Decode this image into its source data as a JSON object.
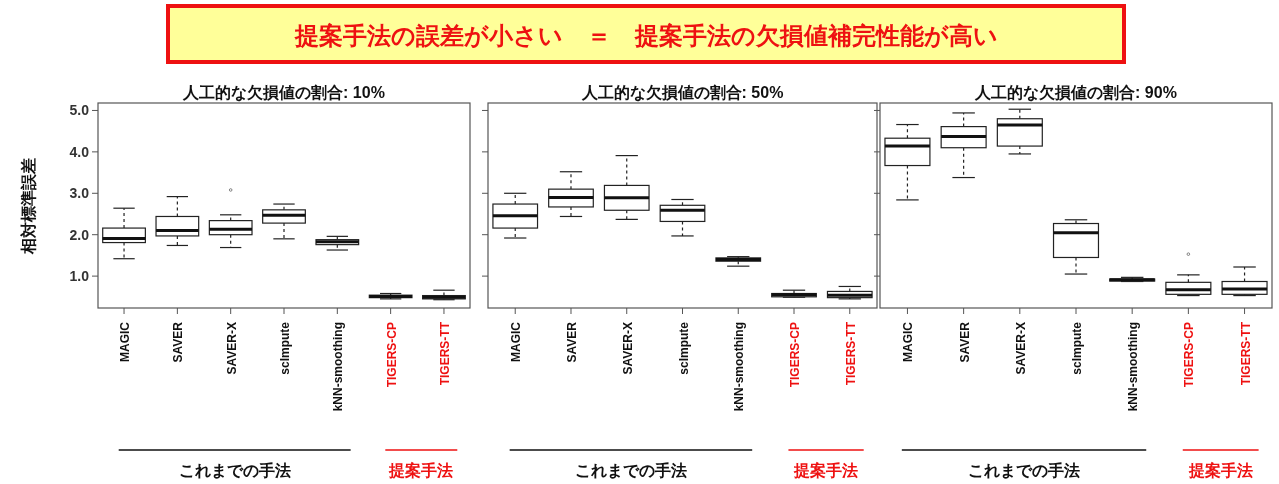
{
  "chart_data": [
    {
      "type": "box",
      "title": "人工的な欠損値の割合: 10%",
      "ylabel": "相対標準誤差",
      "categories": [
        "MAGIC",
        "SAVER",
        "SAVER-X",
        "scImpute",
        "kNN-smoothing",
        "TIGERS-CP",
        "TIGERS-TT"
      ],
      "ylim": [
        0.23,
        5.18
      ],
      "yticks": [
        {
          "value": 1,
          "label": "1.0"
        },
        {
          "value": 2,
          "label": "2.0"
        },
        {
          "value": 3,
          "label": "3.0"
        },
        {
          "value": 4,
          "label": "4.0"
        },
        {
          "value": 5,
          "label": "5.0"
        }
      ],
      "boxes": [
        {
          "low": 1.42,
          "q1": 1.81,
          "median": 1.91,
          "q3": 2.16,
          "high": 2.64
        },
        {
          "low": 1.74,
          "q1": 1.97,
          "median": 2.1,
          "q3": 2.44,
          "high": 2.92
        },
        {
          "low": 1.69,
          "q1": 2.0,
          "median": 2.13,
          "q3": 2.34,
          "high": 2.48,
          "outliers": [
            3.08
          ]
        },
        {
          "low": 1.9,
          "q1": 2.28,
          "median": 2.47,
          "q3": 2.6,
          "high": 2.74
        },
        {
          "low": 1.63,
          "q1": 1.76,
          "median": 1.83,
          "q3": 1.88,
          "high": 1.96
        },
        {
          "low": 0.45,
          "q1": 0.48,
          "median": 0.51,
          "q3": 0.54,
          "high": 0.58
        },
        {
          "low": 0.43,
          "q1": 0.45,
          "median": 0.49,
          "q3": 0.53,
          "high": 0.66
        }
      ],
      "annotations": [
        "提案手法の誤差が小さい　＝　提案手法の欠損値補完性能が高い",
        "これまでの手法",
        "提案手法"
      ]
    },
    {
      "type": "box",
      "title": "人工的な欠損値の割合: 50%",
      "tick_labels": "x",
      "categories": [
        "MAGIC",
        "SAVER",
        "SAVER-X",
        "scImpute",
        "kNN-smoothing",
        "TIGERS-CP",
        "TIGERS-TT"
      ],
      "ylim": [
        0.23,
        5.18
      ],
      "yticks": [
        1,
        2,
        3,
        4,
        5
      ],
      "boxes": [
        {
          "low": 1.92,
          "q1": 2.16,
          "median": 2.46,
          "q3": 2.74,
          "high": 3.0
        },
        {
          "low": 2.44,
          "q1": 2.67,
          "median": 2.9,
          "q3": 3.1,
          "high": 3.52
        },
        {
          "low": 2.37,
          "q1": 2.59,
          "median": 2.89,
          "q3": 3.19,
          "high": 3.91
        },
        {
          "low": 1.97,
          "q1": 2.32,
          "median": 2.59,
          "q3": 2.71,
          "high": 2.85
        },
        {
          "low": 1.24,
          "q1": 1.36,
          "median": 1.4,
          "q3": 1.44,
          "high": 1.47
        },
        {
          "low": 0.49,
          "q1": 0.5,
          "median": 0.55,
          "q3": 0.58,
          "high": 0.66
        },
        {
          "low": 0.45,
          "q1": 0.48,
          "median": 0.54,
          "q3": 0.63,
          "high": 0.75
        }
      ],
      "annotations": [
        "これまでの手法",
        "提案手法"
      ]
    },
    {
      "type": "box",
      "title": "人工的な欠損値の割合: 90%",
      "tick_labels": "x",
      "categories": [
        "MAGIC",
        "SAVER",
        "SAVER-X",
        "scImpute",
        "kNN-smoothing",
        "TIGERS-CP",
        "TIGERS-TT"
      ],
      "ylim": [
        0.23,
        5.18
      ],
      "yticks": [
        1,
        2,
        3,
        4,
        5
      ],
      "boxes": [
        {
          "low": 2.84,
          "q1": 3.67,
          "median": 4.14,
          "q3": 4.33,
          "high": 4.66
        },
        {
          "low": 3.38,
          "q1": 4.1,
          "median": 4.37,
          "q3": 4.61,
          "high": 4.94
        },
        {
          "low": 3.95,
          "q1": 4.14,
          "median": 4.65,
          "q3": 4.8,
          "high": 5.03
        },
        {
          "low": 1.05,
          "q1": 1.45,
          "median": 2.05,
          "q3": 2.27,
          "high": 2.36
        },
        {
          "low": 0.87,
          "q1": 0.88,
          "median": 0.91,
          "q3": 0.93,
          "high": 0.97
        },
        {
          "low": 0.53,
          "q1": 0.56,
          "median": 0.67,
          "q3": 0.85,
          "high": 1.03,
          "outliers": [
            1.53
          ]
        },
        {
          "low": 0.53,
          "q1": 0.56,
          "median": 0.69,
          "q3": 0.87,
          "high": 1.22
        }
      ],
      "annotations": [
        "これまでの手法",
        "提案手法"
      ]
    }
  ]
}
